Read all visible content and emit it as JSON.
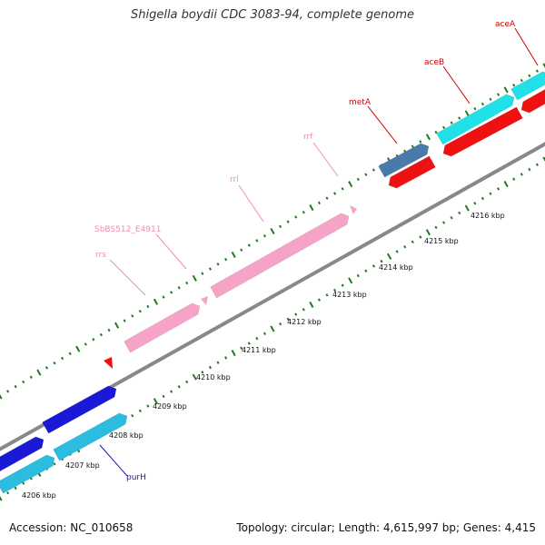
{
  "title": "Shigella boydii CDC 3083-94, complete genome",
  "footer": {
    "accession": "Accession: NC_010658",
    "topology": "Topology: circular; Length: 4,615,997 bp; Genes: 4,415"
  },
  "scale": {
    "ticks": [
      "4206 kbp",
      "4207 kbp",
      "4208 kbp",
      "4209 kbp",
      "4210 kbp",
      "4211 kbp",
      "4212 kbp",
      "4213 kbp",
      "4214 kbp",
      "4215 kbp",
      "4216 kbp"
    ]
  },
  "genes": {
    "purH": "purH",
    "rrs": "rrs",
    "SbBS512_E4911": "SbBS512_E4911",
    "rrl": "rrl",
    "rrf": "rrf",
    "metA": "metA",
    "aceB": "aceB",
    "aceA": "aceA"
  },
  "colors": {
    "backbone": "#888888",
    "ticks": "#1f7a1f",
    "rRNA": "#f5a3c7",
    "purH_blue": "#1a1ad6",
    "cyan": "#22e0e8",
    "light_blue": "#2bbce0",
    "metA_steel": "#4a7aaa",
    "red": "#ee1111",
    "purH_label": "#1a1ab0",
    "rRNA_label": "#e98fb8",
    "red_label": "#cc0000"
  }
}
